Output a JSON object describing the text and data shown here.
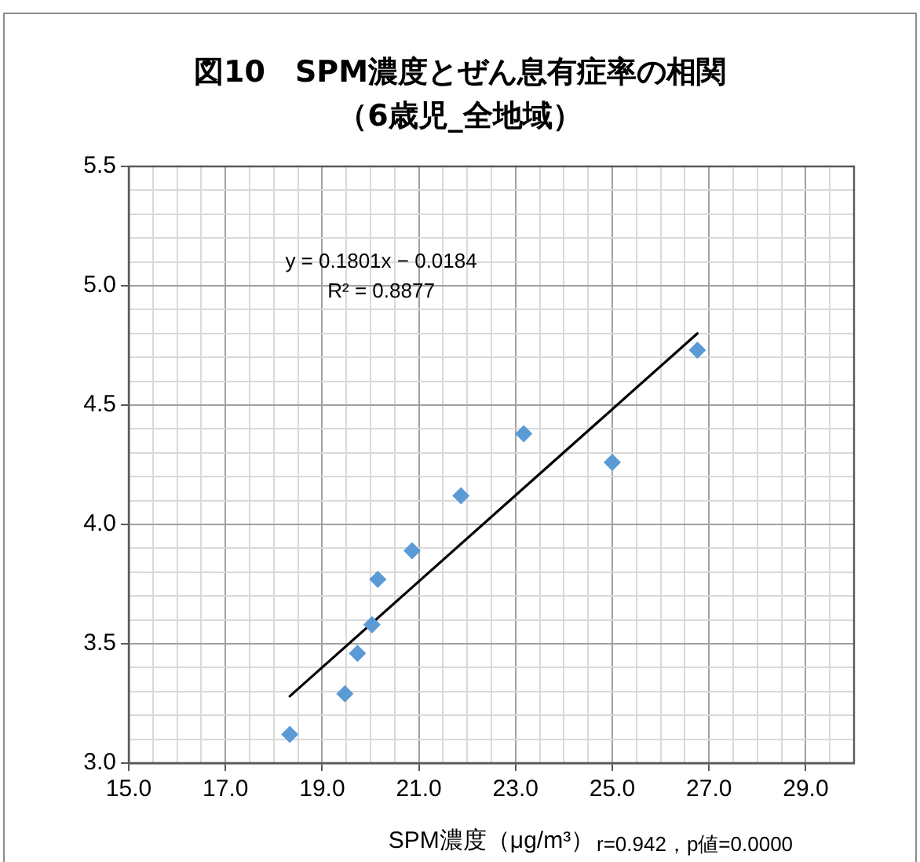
{
  "chart_data": {
    "type": "scatter",
    "title": "図10　SPM濃度とぜん息有症率の相関",
    "subtitle": "（6歳児_全地域）",
    "xlabel": "SPM濃度（μg/m³）",
    "annotations": [
      "y = 0.1801x − 0.0184",
      "R² = 0.8877",
      "r=0.942，p値=0.0000"
    ],
    "series": [
      {
        "color": "#5b9bd5",
        "marker": "diamond",
        "x": [
          18.33,
          19.47,
          19.73,
          20.03,
          20.15,
          20.86,
          21.87,
          23.17,
          25.0,
          26.76
        ],
        "values": [
          3.12,
          3.29,
          3.46,
          3.58,
          3.77,
          3.89,
          4.12,
          4.38,
          4.26,
          4.73
        ]
      },
      {
        "type": "line",
        "color": "#000000",
        "marker": "none",
        "x": [
          18.33,
          26.76
        ],
        "values": [
          3.28,
          4.8
        ]
      }
    ],
    "xlim": [
      15,
      30
    ],
    "ylim": [
      3,
      5.5
    ],
    "xticks": [
      {
        "value": 15,
        "label": "15.0"
      },
      {
        "value": 15.5,
        "label": null
      },
      {
        "value": 16,
        "label": null
      },
      {
        "value": 16.5,
        "label": null
      },
      {
        "value": 17,
        "label": "17.0"
      },
      {
        "value": 17.5,
        "label": null
      },
      {
        "value": 18,
        "label": null
      },
      {
        "value": 18.5,
        "label": null
      },
      {
        "value": 19,
        "label": "19.0"
      },
      {
        "value": 19.5,
        "label": null
      },
      {
        "value": 20,
        "label": null
      },
      {
        "value": 20.5,
        "label": null
      },
      {
        "value": 21,
        "label": "21.0"
      },
      {
        "value": 21.5,
        "label": null
      },
      {
        "value": 22,
        "label": null
      },
      {
        "value": 22.5,
        "label": null
      },
      {
        "value": 23,
        "label": "23.0"
      },
      {
        "value": 23.5,
        "label": null
      },
      {
        "value": 24,
        "label": null
      },
      {
        "value": 24.5,
        "label": null
      },
      {
        "value": 25,
        "label": "25.0"
      },
      {
        "value": 25.5,
        "label": null
      },
      {
        "value": 26,
        "label": null
      },
      {
        "value": 26.5,
        "label": null
      },
      {
        "value": 27,
        "label": "27.0"
      },
      {
        "value": 27.5,
        "label": null
      },
      {
        "value": 28,
        "label": null
      },
      {
        "value": 28.5,
        "label": null
      },
      {
        "value": 29,
        "label": "29.0"
      },
      {
        "value": 29.5,
        "label": null
      }
    ],
    "yticks": [
      {
        "value": 3,
        "label": "3.0"
      },
      {
        "value": 3.1,
        "label": null
      },
      {
        "value": 3.2,
        "label": null
      },
      {
        "value": 3.3,
        "label": null
      },
      {
        "value": 3.4,
        "label": null
      },
      {
        "value": 3.5,
        "label": "3.5"
      },
      {
        "value": 3.6,
        "label": null
      },
      {
        "value": 3.7,
        "label": null
      },
      {
        "value": 3.8,
        "label": null
      },
      {
        "value": 3.9,
        "label": null
      },
      {
        "value": 4,
        "label": "4.0"
      },
      {
        "value": 4.1,
        "label": null
      },
      {
        "value": 4.2,
        "label": null
      },
      {
        "value": 4.3,
        "label": null
      },
      {
        "value": 4.4,
        "label": null
      },
      {
        "value": 4.5,
        "label": "4.5"
      },
      {
        "value": 4.6,
        "label": null
      },
      {
        "value": 4.7,
        "label": null
      },
      {
        "value": 4.8,
        "label": null
      },
      {
        "value": 4.9,
        "label": null
      },
      {
        "value": 5,
        "label": "5.0"
      },
      {
        "value": 5.1,
        "label": null
      },
      {
        "value": 5.2,
        "label": null
      },
      {
        "value": 5.3,
        "label": null
      },
      {
        "value": 5.4,
        "label": null
      },
      {
        "value": 5.5,
        "label": "5.5"
      }
    ],
    "grid": true
  }
}
